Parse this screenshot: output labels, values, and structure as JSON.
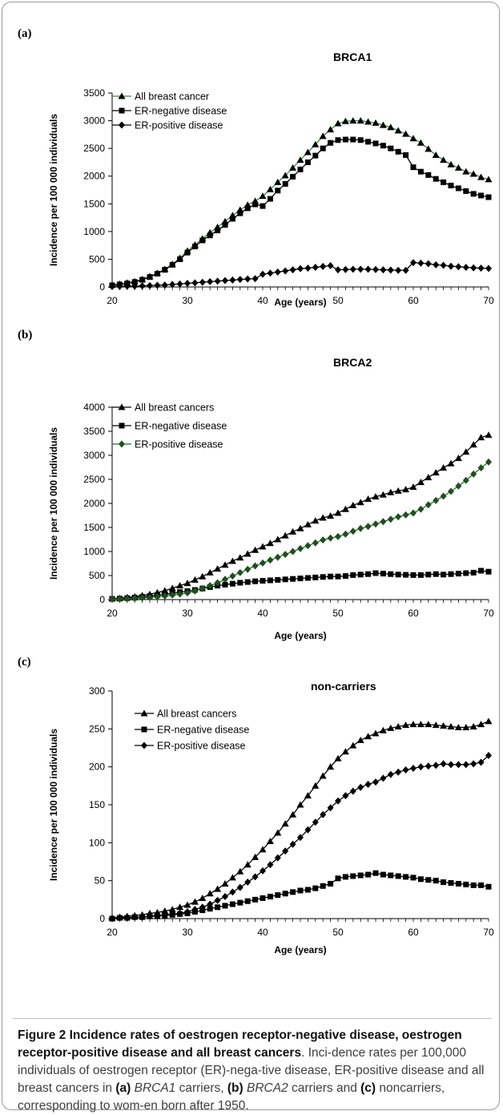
{
  "caption": {
    "figure_label": "Figure 2",
    "title": "Incidence rates of oestrogen receptor-negative disease, oestrogen receptor-positive disease and all breast cancers",
    "text_1": ". Inci-dence rates per 100,000 individuals of oestrogen receptor (ER)-nega-tive disease, ER-positive disease and all breast cancers in ",
    "label_a": "(a)",
    "gene_a": "BRCA1",
    "text_2": " carriers, ",
    "label_b": "(b)",
    "gene_b": "BRCA2",
    "text_3": " carriers and ",
    "label_c": "(c)",
    "text_4": " noncarriers, corresponding to wom-en born after 1950."
  },
  "chart_data": [
    {
      "panel_label": "(a)",
      "type": "line",
      "title": "BRCA1",
      "xlabel": "Age (years)",
      "ylabel": "Incidence per 100 000 individuals",
      "xlim": [
        20,
        70
      ],
      "ylim": [
        0,
        3500
      ],
      "xticks": [
        20,
        30,
        40,
        50,
        60,
        70
      ],
      "yticks": [
        0,
        500,
        1000,
        1500,
        2000,
        2500,
        3000,
        3500
      ],
      "legend_position": "top-left",
      "grid": false,
      "x": [
        20,
        21,
        22,
        23,
        24,
        25,
        26,
        27,
        28,
        29,
        30,
        31,
        32,
        33,
        34,
        35,
        36,
        37,
        38,
        39,
        40,
        41,
        42,
        43,
        44,
        45,
        46,
        47,
        48,
        49,
        50,
        51,
        52,
        53,
        54,
        55,
        56,
        57,
        58,
        59,
        60,
        61,
        62,
        63,
        64,
        65,
        66,
        67,
        68,
        69,
        70
      ],
      "series": [
        {
          "name": "All breast cancer",
          "marker": "triangle",
          "line_color": "#3a8a3a",
          "marker_color": "#000000",
          "values": [
            40,
            55,
            75,
            100,
            140,
            190,
            250,
            320,
            410,
            520,
            650,
            760,
            870,
            980,
            1080,
            1180,
            1290,
            1390,
            1480,
            1550,
            1640,
            1760,
            1890,
            2010,
            2150,
            2290,
            2430,
            2570,
            2720,
            2840,
            2950,
            2990,
            3000,
            3000,
            2980,
            2960,
            2920,
            2880,
            2820,
            2760,
            2680,
            2600,
            2490,
            2380,
            2290,
            2210,
            2150,
            2080,
            2040,
            1980,
            1940
          ]
        },
        {
          "name": "ER-negative disease",
          "marker": "square",
          "line_color": "#000000",
          "marker_color": "#000000",
          "values": [
            30,
            45,
            65,
            90,
            130,
            180,
            240,
            310,
            400,
            500,
            620,
            730,
            840,
            930,
            1020,
            1120,
            1230,
            1330,
            1420,
            1490,
            1460,
            1590,
            1740,
            1860,
            1990,
            2120,
            2250,
            2370,
            2500,
            2600,
            2650,
            2660,
            2660,
            2650,
            2620,
            2590,
            2550,
            2500,
            2440,
            2380,
            2160,
            2080,
            2020,
            1950,
            1890,
            1830,
            1780,
            1730,
            1680,
            1650,
            1620
          ]
        },
        {
          "name": "ER-positive disease",
          "marker": "diamond",
          "line_color": "#000000",
          "marker_color": "#000000",
          "values": [
            10,
            10,
            15,
            15,
            20,
            25,
            30,
            35,
            45,
            55,
            65,
            75,
            85,
            95,
            105,
            115,
            125,
            135,
            145,
            150,
            230,
            250,
            270,
            290,
            310,
            330,
            340,
            355,
            370,
            385,
            310,
            315,
            320,
            320,
            320,
            315,
            310,
            305,
            300,
            300,
            440,
            430,
            420,
            400,
            390,
            375,
            365,
            355,
            345,
            340,
            335
          ]
        }
      ]
    },
    {
      "panel_label": "(b)",
      "type": "line",
      "title": "BRCA2",
      "xlabel": "Age (years)",
      "ylabel": "Incidence per 100 000 individuals",
      "xlim": [
        20,
        70
      ],
      "ylim": [
        0,
        4000
      ],
      "xticks": [
        20,
        30,
        40,
        50,
        60,
        70
      ],
      "yticks": [
        0,
        500,
        1000,
        1500,
        2000,
        2500,
        3000,
        3500,
        4000
      ],
      "legend_position": "top-left",
      "grid": false,
      "x": [
        20,
        21,
        22,
        23,
        24,
        25,
        26,
        27,
        28,
        29,
        30,
        31,
        32,
        33,
        34,
        35,
        36,
        37,
        38,
        39,
        40,
        41,
        42,
        43,
        44,
        45,
        46,
        47,
        48,
        49,
        50,
        51,
        52,
        53,
        54,
        55,
        56,
        57,
        58,
        59,
        60,
        61,
        62,
        63,
        64,
        65,
        66,
        67,
        68,
        69,
        70
      ],
      "series": [
        {
          "name": "All breast cancers",
          "marker": "triangle",
          "line_color": "#000000",
          "marker_color": "#000000",
          "values": [
            20,
            30,
            45,
            60,
            85,
            110,
            145,
            185,
            235,
            290,
            340,
            410,
            480,
            560,
            640,
            720,
            800,
            870,
            950,
            1030,
            1100,
            1170,
            1250,
            1330,
            1410,
            1480,
            1560,
            1640,
            1700,
            1740,
            1800,
            1880,
            1960,
            2020,
            2090,
            2140,
            2180,
            2230,
            2260,
            2290,
            2340,
            2440,
            2540,
            2640,
            2740,
            2830,
            2940,
            3070,
            3220,
            3370,
            3420
          ]
        },
        {
          "name": "ER-negative disease",
          "marker": "square",
          "line_color": "#000000",
          "marker_color": "#000000",
          "values": [
            15,
            20,
            30,
            40,
            55,
            70,
            90,
            110,
            130,
            155,
            175,
            200,
            230,
            260,
            290,
            310,
            330,
            350,
            365,
            380,
            390,
            400,
            410,
            420,
            430,
            440,
            450,
            460,
            470,
            480,
            480,
            490,
            510,
            520,
            530,
            550,
            540,
            530,
            520,
            515,
            510,
            510,
            520,
            530,
            520,
            530,
            540,
            550,
            560,
            600,
            580
          ]
        },
        {
          "name": "ER-positive disease",
          "marker": "diamond",
          "line_color": "#2e6b2e",
          "marker_color": "#1f4f1f",
          "values": [
            10,
            15,
            20,
            25,
            35,
            45,
            60,
            75,
            95,
            115,
            140,
            180,
            230,
            290,
            350,
            420,
            490,
            560,
            630,
            700,
            760,
            820,
            880,
            940,
            1000,
            1060,
            1120,
            1180,
            1240,
            1280,
            1310,
            1360,
            1420,
            1480,
            1520,
            1570,
            1620,
            1670,
            1720,
            1760,
            1800,
            1880,
            1970,
            2060,
            2150,
            2250,
            2360,
            2480,
            2610,
            2740,
            2860
          ]
        }
      ]
    },
    {
      "panel_label": "(c)",
      "type": "line",
      "title": "non-carriers",
      "xlabel": "Age (years)",
      "ylabel": "Incidence per 100 000 individuals",
      "xlim": [
        20,
        70
      ],
      "ylim": [
        0,
        300
      ],
      "xticks": [
        20,
        30,
        40,
        50,
        60,
        70
      ],
      "yticks": [
        0,
        50,
        100,
        150,
        200,
        250,
        300
      ],
      "legend_position": "top-left",
      "grid": false,
      "x": [
        20,
        21,
        22,
        23,
        24,
        25,
        26,
        27,
        28,
        29,
        30,
        31,
        32,
        33,
        34,
        35,
        36,
        37,
        38,
        39,
        40,
        41,
        42,
        43,
        44,
        45,
        46,
        47,
        48,
        49,
        50,
        51,
        52,
        53,
        54,
        55,
        56,
        57,
        58,
        59,
        60,
        61,
        62,
        63,
        64,
        65,
        66,
        67,
        68,
        69,
        70
      ],
      "series": [
        {
          "name": "All breast cancers",
          "marker": "triangle",
          "line_color": "#000000",
          "marker_color": "#000000",
          "values": [
            1,
            2,
            3,
            4,
            5,
            7,
            8,
            10,
            12,
            15,
            18,
            22,
            27,
            33,
            39,
            46,
            54,
            62,
            71,
            81,
            91,
            102,
            113,
            125,
            137,
            150,
            162,
            175,
            188,
            200,
            211,
            220,
            228,
            235,
            240,
            244,
            248,
            251,
            253,
            255,
            256,
            256,
            256,
            255,
            254,
            253,
            252,
            252,
            253,
            256,
            260
          ]
        },
        {
          "name": "ER-negative disease",
          "marker": "square",
          "line_color": "#000000",
          "marker_color": "#000000",
          "values": [
            0,
            1,
            1,
            2,
            2,
            3,
            3,
            4,
            5,
            6,
            7,
            9,
            11,
            13,
            15,
            17,
            19,
            21,
            23,
            25,
            27,
            29,
            31,
            33,
            35,
            37,
            38,
            40,
            43,
            46,
            53,
            55,
            56,
            57,
            58,
            60,
            58,
            57,
            56,
            55,
            54,
            52,
            51,
            50,
            48,
            47,
            46,
            45,
            44,
            44,
            42
          ]
        },
        {
          "name": "ER-positive disease",
          "marker": "diamond",
          "line_color": "#000000",
          "marker_color": "#000000",
          "values": [
            0,
            1,
            1,
            2,
            2,
            3,
            4,
            5,
            6,
            7,
            9,
            12,
            15,
            19,
            24,
            29,
            35,
            41,
            48,
            55,
            63,
            71,
            80,
            89,
            98,
            107,
            117,
            127,
            137,
            146,
            155,
            162,
            168,
            173,
            177,
            180,
            185,
            190,
            193,
            196,
            198,
            200,
            201,
            202,
            204,
            203,
            203,
            203,
            204,
            206,
            215
          ]
        }
      ]
    }
  ]
}
